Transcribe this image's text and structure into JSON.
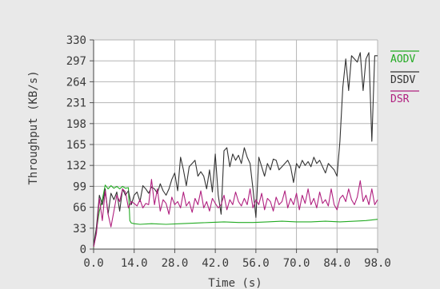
{
  "chart_data": {
    "type": "line",
    "title": "",
    "xlabel": "Time (s)",
    "ylabel": "Throughput (KB/s)",
    "xlim": [
      0,
      98
    ],
    "ylim": [
      0,
      330
    ],
    "x_tick_values": [
      0,
      14,
      28,
      42,
      56,
      70,
      84,
      98
    ],
    "x_tick_labels": [
      "0.0",
      "14.0",
      "28.0",
      "42.0",
      "56.0",
      "70.0",
      "84.0",
      "98.0"
    ],
    "y_ticks": [
      0,
      33,
      66,
      99,
      132,
      165,
      198,
      231,
      264,
      297,
      330
    ],
    "grid": true,
    "legend_position": "right",
    "series": [
      {
        "name": "AODV",
        "color": "#22aa22",
        "x": [
          0,
          1,
          2,
          3,
          4,
          5,
          6,
          7,
          8,
          9,
          10,
          11,
          12,
          12.5,
          13,
          14,
          16,
          20,
          25,
          30,
          35,
          40,
          45,
          50,
          55,
          60,
          65,
          70,
          75,
          80,
          85,
          90,
          94,
          98
        ],
        "y": [
          2,
          30,
          60,
          78,
          101,
          95,
          100,
          96,
          99,
          95,
          99,
          96,
          97,
          45,
          41,
          40,
          39,
          40,
          39,
          40,
          41,
          42,
          43,
          42,
          42,
          43,
          44,
          43,
          43,
          44,
          43,
          44,
          45,
          47
        ]
      },
      {
        "name": "DSDV",
        "color": "#333333",
        "x": [
          0,
          1,
          2,
          3,
          4,
          5,
          6,
          7,
          8,
          9,
          10,
          11,
          12,
          13,
          14,
          15,
          16,
          17,
          18,
          19,
          20,
          21,
          22,
          23,
          24,
          25,
          26,
          27,
          28,
          29,
          30,
          31,
          32,
          33,
          34,
          35,
          36,
          37,
          38,
          39,
          40,
          41,
          42,
          43,
          44,
          45,
          46,
          47,
          48,
          49,
          50,
          51,
          52,
          53,
          54,
          55,
          56,
          57,
          58,
          59,
          60,
          61,
          62,
          63,
          64,
          65,
          66,
          67,
          68,
          69,
          70,
          71,
          72,
          73,
          74,
          75,
          76,
          77,
          78,
          79,
          80,
          81,
          82,
          83,
          84,
          85,
          86,
          87,
          88,
          89,
          90,
          91,
          92,
          93,
          94,
          95,
          96,
          97,
          98
        ],
        "y": [
          5,
          35,
          85,
          70,
          95,
          55,
          88,
          78,
          90,
          60,
          95,
          85,
          92,
          70,
          85,
          90,
          75,
          100,
          95,
          88,
          98,
          95,
          88,
          103,
          92,
          85,
          95,
          110,
          120,
          92,
          145,
          125,
          100,
          130,
          135,
          140,
          115,
          122,
          115,
          95,
          125,
          90,
          150,
          85,
          55,
          155,
          160,
          130,
          150,
          140,
          148,
          135,
          160,
          145,
          135,
          95,
          50,
          145,
          130,
          115,
          135,
          125,
          142,
          140,
          125,
          130,
          135,
          140,
          130,
          105,
          135,
          128,
          140,
          132,
          138,
          130,
          145,
          135,
          140,
          130,
          120,
          135,
          130,
          125,
          115,
          170,
          255,
          300,
          250,
          305,
          300,
          295,
          310,
          250,
          300,
          310,
          170,
          305,
          305
        ]
      },
      {
        "name": "DSR",
        "color": "#b0207f",
        "x": [
          0,
          1,
          2,
          3,
          4,
          5,
          6,
          7,
          8,
          9,
          10,
          11,
          12,
          13,
          14,
          15,
          16,
          17,
          18,
          19,
          20,
          21,
          22,
          23,
          24,
          25,
          26,
          27,
          28,
          29,
          30,
          31,
          32,
          33,
          34,
          35,
          36,
          37,
          38,
          39,
          40,
          41,
          42,
          43,
          44,
          45,
          46,
          47,
          48,
          49,
          50,
          51,
          52,
          53,
          54,
          55,
          56,
          57,
          58,
          59,
          60,
          61,
          62,
          63,
          64,
          65,
          66,
          67,
          68,
          69,
          70,
          71,
          72,
          73,
          74,
          75,
          76,
          77,
          78,
          79,
          80,
          81,
          82,
          83,
          84,
          85,
          86,
          87,
          88,
          89,
          90,
          91,
          92,
          93,
          94,
          95,
          96,
          97,
          98
        ],
        "y": [
          3,
          25,
          80,
          45,
          92,
          55,
          35,
          60,
          85,
          75,
          95,
          90,
          65,
          75,
          72,
          68,
          78,
          65,
          72,
          70,
          110,
          70,
          95,
          60,
          78,
          72,
          55,
          82,
          70,
          75,
          65,
          90,
          68,
          75,
          58,
          80,
          70,
          92,
          65,
          75,
          60,
          80,
          72,
          65,
          70,
          85,
          62,
          78,
          70,
          90,
          75,
          68,
          80,
          70,
          95,
          65,
          78,
          70,
          88,
          62,
          80,
          75,
          60,
          82,
          70,
          75,
          92,
          65,
          80,
          70,
          88,
          62,
          85,
          72,
          95,
          70,
          80,
          65,
          90,
          72,
          78,
          68,
          95,
          70,
          62,
          80,
          85,
          75,
          95,
          78,
          70,
          82,
          108,
          75,
          85,
          70,
          95,
          70,
          78
        ]
      }
    ]
  }
}
